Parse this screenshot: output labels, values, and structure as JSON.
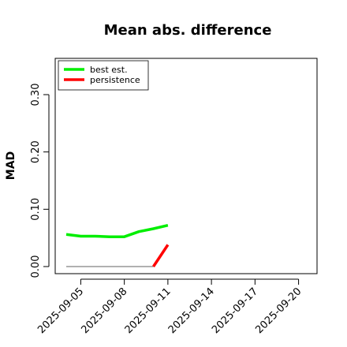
{
  "chart_data": {
    "type": "line",
    "title": "Mean abs. difference",
    "xlabel": "",
    "ylabel": "MAD",
    "x_tick_labels": [
      "2025-09-05",
      "2025-09-08",
      "2025-09-11",
      "2025-09-14",
      "2025-09-17",
      "2025-09-20"
    ],
    "xlim": [
      "2025-09-04",
      "2025-09-21"
    ],
    "y_ticks": [
      "0.00",
      "0.10",
      "0.20",
      "0.30"
    ],
    "ylim": [
      -0.01,
      0.365
    ],
    "legend_position": "top-left",
    "grid": false,
    "series": [
      {
        "name": "best est.",
        "color": "#00ee00",
        "dates": [
          "2025-09-04",
          "2025-09-05",
          "2025-09-06",
          "2025-09-07",
          "2025-09-08",
          "2025-09-09",
          "2025-09-10",
          "2025-09-11"
        ],
        "values": [
          0.056,
          0.053,
          0.053,
          0.052,
          0.052,
          0.061,
          0.066,
          0.072
        ]
      },
      {
        "name": "persistence",
        "color": "#ff0000",
        "dates": [
          "2025-09-10",
          "2025-09-11"
        ],
        "values": [
          0.0,
          0.038
        ]
      }
    ],
    "reference_line": {
      "dates": [
        "2025-09-04",
        "2025-09-10"
      ],
      "value": 0.0,
      "color": "#808080"
    }
  }
}
